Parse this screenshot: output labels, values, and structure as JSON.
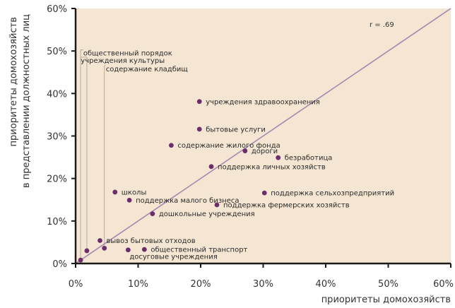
{
  "chart_data": {
    "type": "scatter",
    "xlabel": "приоритеты домохозяйств",
    "ylabel_lines": [
      "приоритеты домохозяйств",
      "в представлении должностных  лиц"
    ],
    "xlim": [
      0,
      60
    ],
    "ylim": [
      0,
      60
    ],
    "x_ticks": [
      0,
      10,
      20,
      30,
      40,
      50,
      60
    ],
    "y_ticks": [
      0,
      10,
      20,
      30,
      40,
      50,
      60
    ],
    "x_tick_labels": [
      "0%",
      "10%",
      "20%",
      "30%",
      "40%",
      "50%",
      "60%"
    ],
    "y_tick_labels": [
      "0%",
      "10%",
      "20%",
      "30%",
      "40%",
      "50%",
      "60%"
    ],
    "grid": false,
    "background": "#f4e6d2",
    "point_color": "#6b2d6b",
    "line_color": "#a58ab0",
    "leader_color": "#b8aaa0",
    "regression_line": {
      "from": [
        0,
        0
      ],
      "to": [
        60,
        60
      ]
    },
    "annotation": "r = .69",
    "points": [
      {
        "label": "общественный порядок",
        "x": 0.8,
        "y": 0.8,
        "leader": true,
        "label_at": [
          1.0,
          49.5
        ]
      },
      {
        "label": "учреждения культуры",
        "x": 1.8,
        "y": 3.0,
        "leader": true,
        "label_at": [
          0.6,
          47.8
        ]
      },
      {
        "label": "содержание кладбищ",
        "x": 4.6,
        "y": 3.6,
        "leader": true,
        "label_at": [
          4.6,
          45.8
        ]
      },
      {
        "label": "вывоз бытовых отходов",
        "x": 3.9,
        "y": 5.4
      },
      {
        "label": "общественный транспорт",
        "x": 11.0,
        "y": 3.3
      },
      {
        "label": "досуговые учреждения",
        "x": 8.4,
        "y": 3.2,
        "label_at": [
          8.4,
          1.7
        ]
      },
      {
        "label": "школы",
        "x": 6.3,
        "y": 16.8
      },
      {
        "label": "поддержка малого бизнеса",
        "x": 8.6,
        "y": 14.9
      },
      {
        "label": "дошкольные учреждения",
        "x": 12.3,
        "y": 11.7
      },
      {
        "label": "поддержка фермерских хозяйств",
        "x": 22.6,
        "y": 13.8
      },
      {
        "label": "поддержка сельхозпредприятий",
        "x": 30.2,
        "y": 16.6
      },
      {
        "label": "поддержка личных хозяйств",
        "x": 21.7,
        "y": 22.8
      },
      {
        "label": "безработица",
        "x": 32.4,
        "y": 24.9
      },
      {
        "label": "дороги",
        "x": 27.1,
        "y": 26.5
      },
      {
        "label": "содержание жилого фонда",
        "x": 15.3,
        "y": 27.8
      },
      {
        "label": "бытовые услуги",
        "x": 19.8,
        "y": 31.6
      },
      {
        "label": "учреждения  здравоохранения",
        "x": 19.8,
        "y": 38.1
      }
    ]
  }
}
